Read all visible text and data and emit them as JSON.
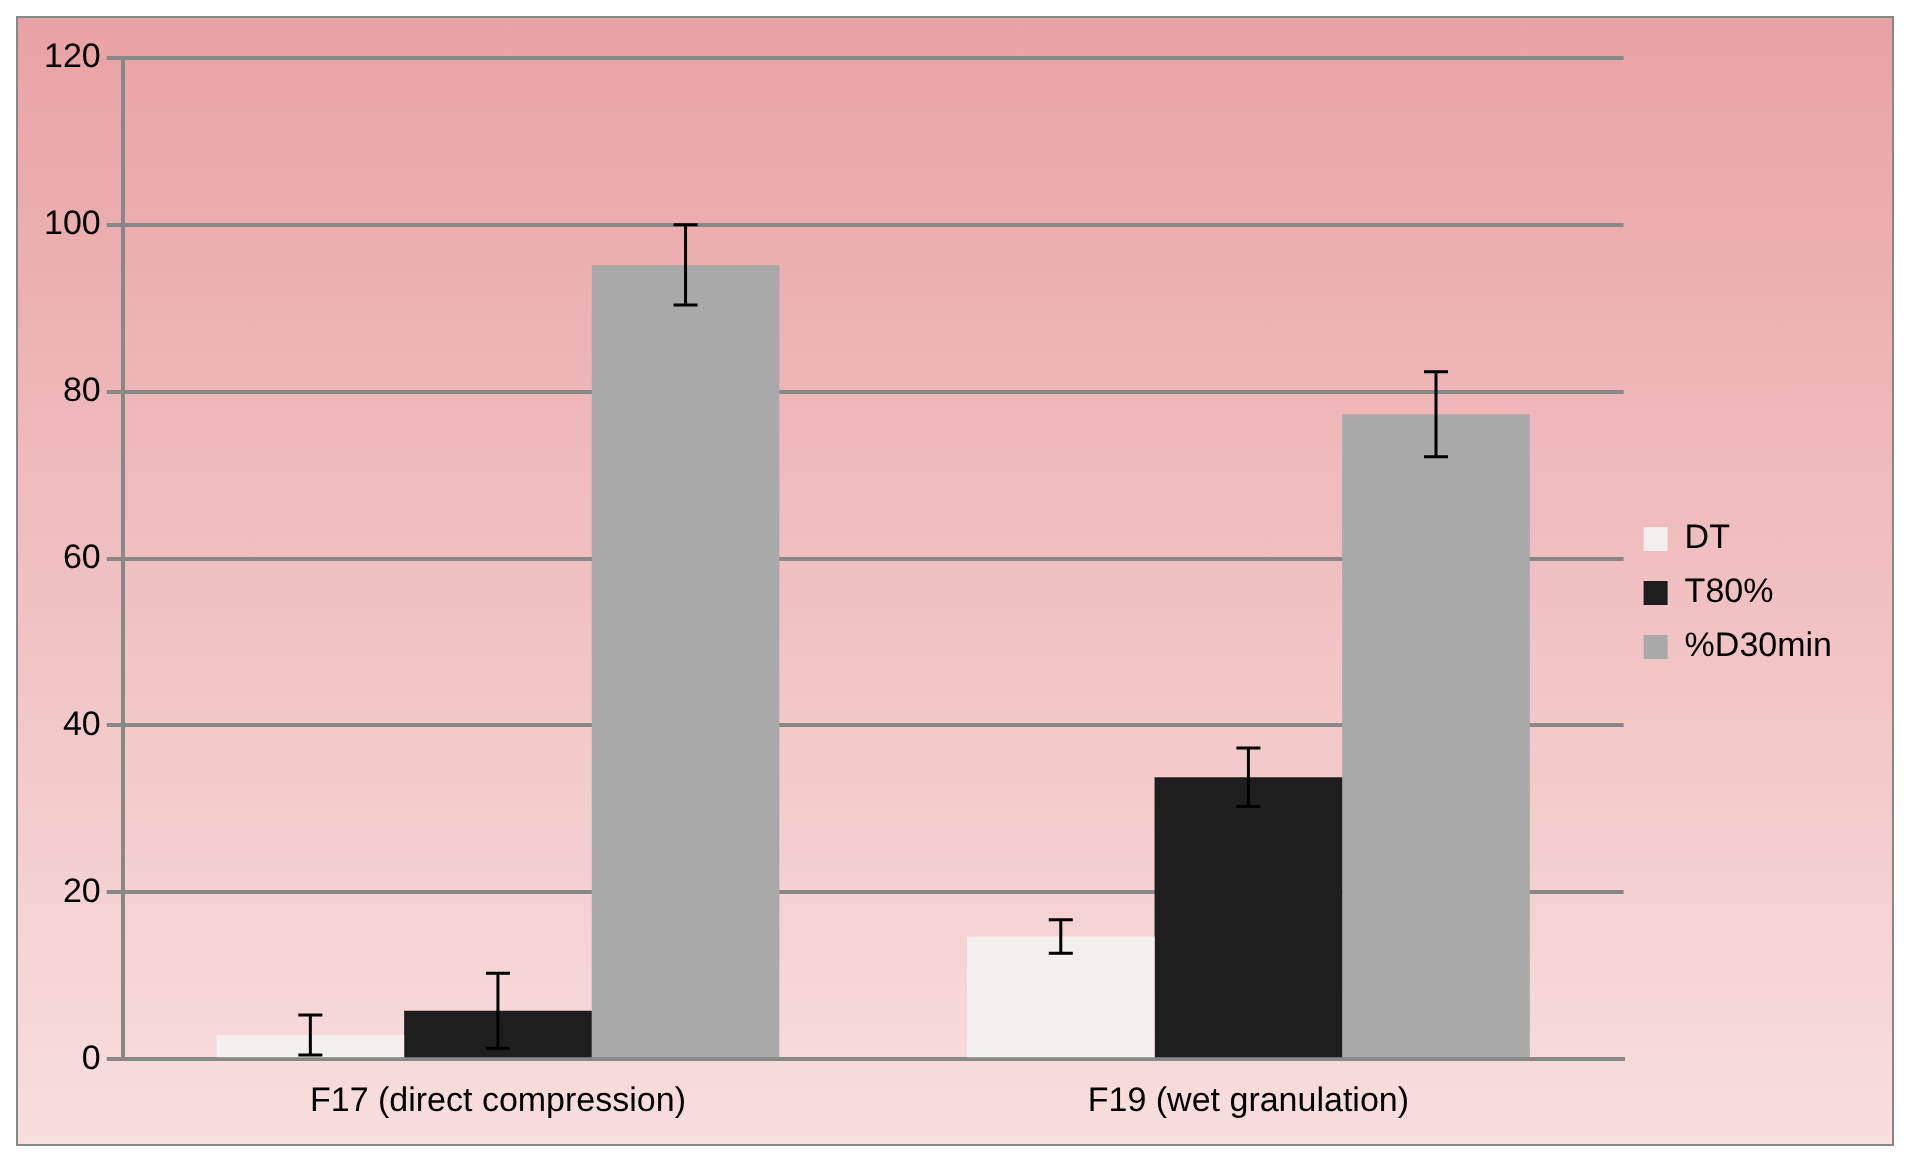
{
  "chart_data": {
    "type": "bar",
    "categories": [
      "F17 (direct compression)",
      "F19 (wet granulation)"
    ],
    "series": [
      {
        "name": "DT",
        "color": "#f4efef",
        "values": [
          2.9,
          14.7
        ],
        "errors": [
          2.4,
          2
        ]
      },
      {
        "name": "T80%",
        "color": "#1e1e1e",
        "values": [
          5.8,
          33.8
        ],
        "errors": [
          4.5,
          3.5
        ]
      },
      {
        "name": "%D30min",
        "color": "#a9a9a9",
        "values": [
          95.2,
          77.3
        ],
        "errors": [
          4.8,
          5.1
        ]
      }
    ],
    "ylim": [
      0,
      120
    ],
    "yticks": [
      0,
      20,
      40,
      60,
      80,
      100,
      120
    ],
    "grid": "y",
    "legend": "right"
  }
}
